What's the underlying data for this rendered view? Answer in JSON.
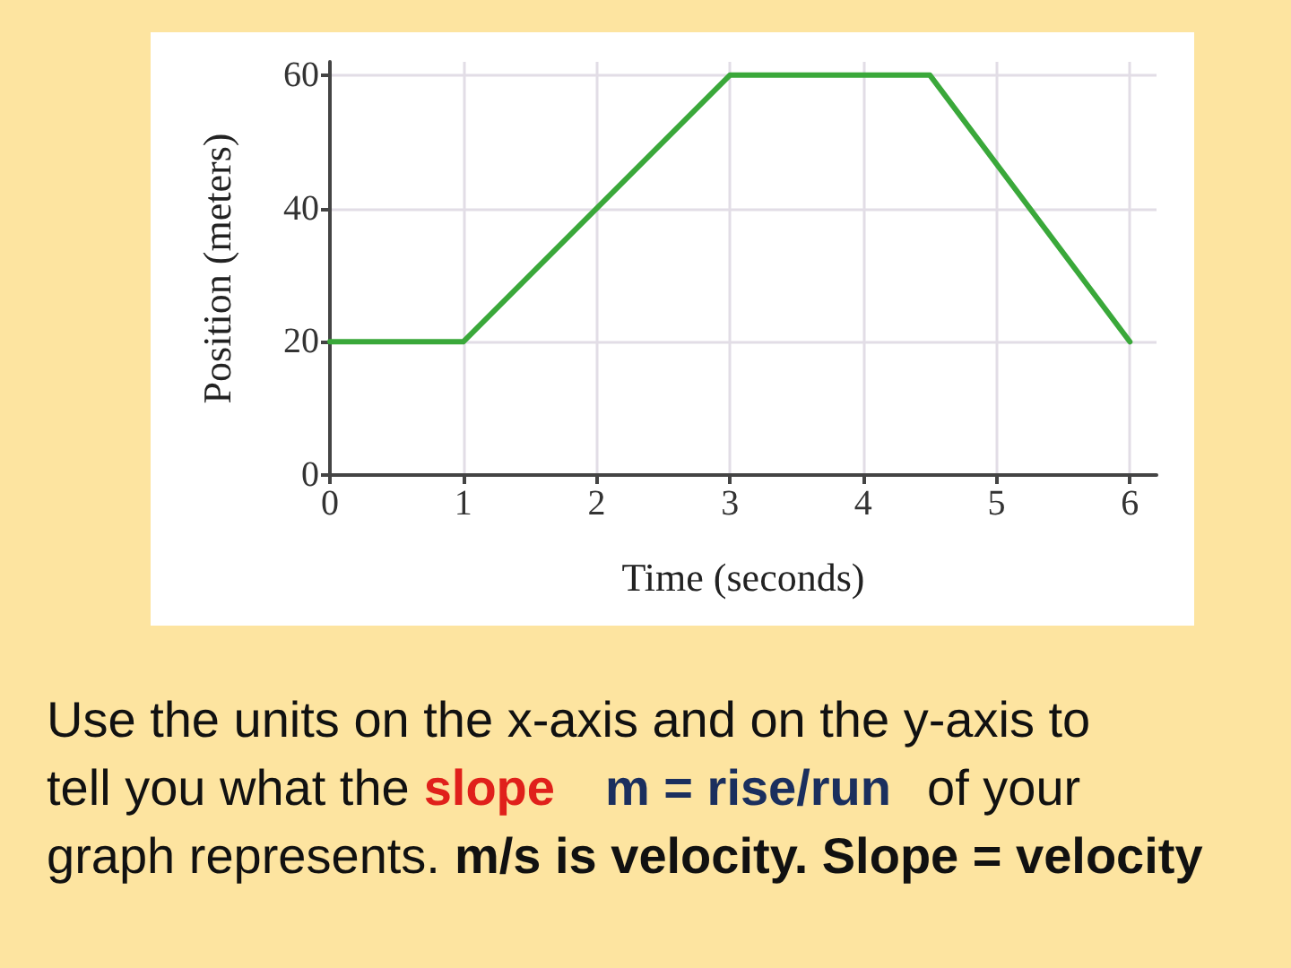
{
  "chart_data": {
    "type": "line",
    "xlabel": "Time (seconds)",
    "ylabel": "Position (meters)",
    "series": [
      {
        "color": "#3aa83a",
        "x": [
          0,
          1,
          3,
          4.5,
          6
        ],
        "values": [
          20,
          20,
          60,
          60,
          20
        ]
      }
    ],
    "xlim": [
      0,
      6.2
    ],
    "xticks": [
      0,
      1,
      2,
      3,
      4,
      5,
      6
    ],
    "ylim": [
      0,
      62
    ],
    "yticks": [
      0,
      20,
      40,
      60
    ],
    "grid": true,
    "marker": "none",
    "line_style": "solid",
    "annotations": [
      "Use the units on the x-axis and on the y-axis to",
      "tell you what the",
      "slope",
      "m = rise/run",
      "of your",
      "graph represents.",
      "m/s is velocity. Slope = velocity"
    ]
  }
}
